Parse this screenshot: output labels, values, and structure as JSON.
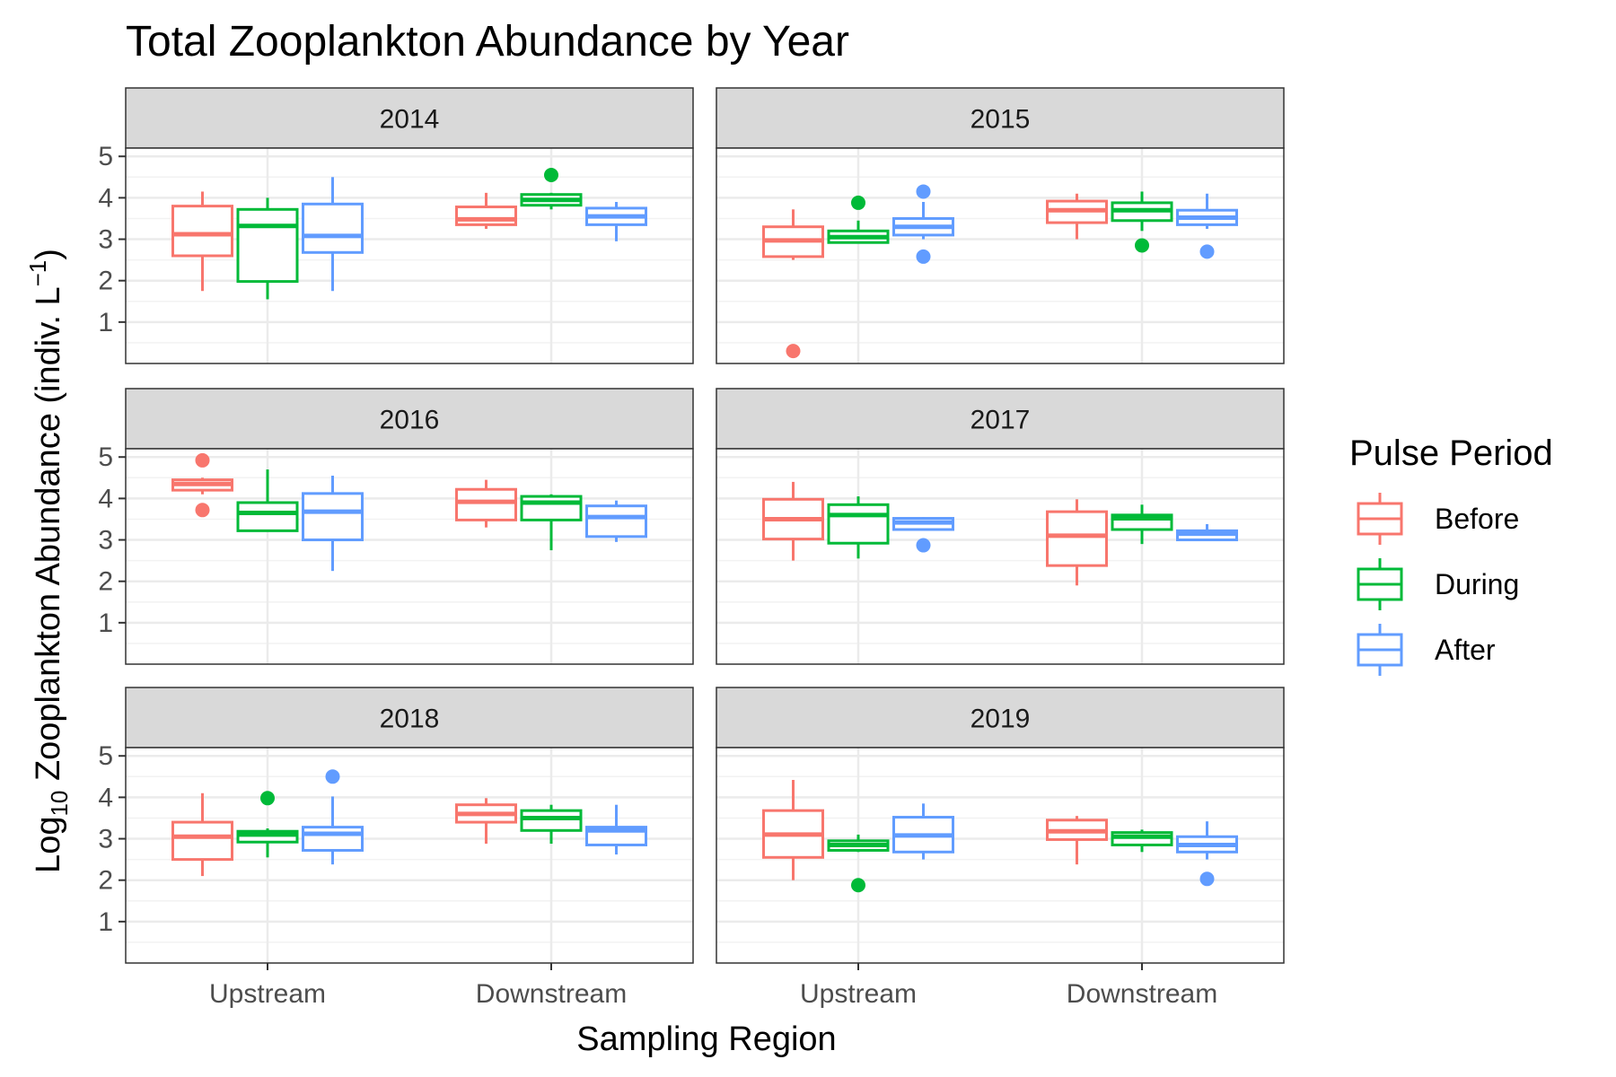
{
  "chart_data": {
    "type": "boxplot",
    "title": "Total Zooplankton Abundance by Year",
    "xlabel": "Sampling Region",
    "ylabel": {
      "prefix": "Log",
      "sub": "10",
      "main": " Zooplankton Abundance (indiv. L",
      "sup": "−1",
      "suffix": ")"
    },
    "categories": [
      "Upstream",
      "Downstream"
    ],
    "ylim": [
      0,
      5.2
    ],
    "yticks": [
      1,
      2,
      3,
      4,
      5
    ],
    "legend": {
      "title": "Pulse Period",
      "position": "right",
      "entries": [
        {
          "label": "Before",
          "color": "#F8766D"
        },
        {
          "label": "During",
          "color": "#00BA38"
        },
        {
          "label": "After",
          "color": "#619CFF"
        }
      ]
    },
    "facets": [
      {
        "label": "2014",
        "boxes": [
          {
            "region": "Upstream",
            "period": "Before",
            "min": 1.75,
            "q1": 2.6,
            "median": 3.12,
            "q3": 3.8,
            "max": 4.15,
            "outliers": []
          },
          {
            "region": "Upstream",
            "period": "During",
            "min": 1.55,
            "q1": 1.98,
            "median": 3.32,
            "q3": 3.72,
            "max": 4.0,
            "outliers": []
          },
          {
            "region": "Upstream",
            "period": "After",
            "min": 1.75,
            "q1": 2.68,
            "median": 3.08,
            "q3": 3.85,
            "max": 4.5,
            "outliers": []
          },
          {
            "region": "Downstream",
            "period": "Before",
            "min": 3.25,
            "q1": 3.35,
            "median": 3.48,
            "q3": 3.78,
            "max": 4.12,
            "outliers": []
          },
          {
            "region": "Downstream",
            "period": "During",
            "min": 3.72,
            "q1": 3.82,
            "median": 3.95,
            "q3": 4.08,
            "max": 4.12,
            "outliers": [
              4.55
            ]
          },
          {
            "region": "Downstream",
            "period": "After",
            "min": 2.95,
            "q1": 3.35,
            "median": 3.55,
            "q3": 3.75,
            "max": 3.9,
            "outliers": []
          }
        ]
      },
      {
        "label": "2015",
        "boxes": [
          {
            "region": "Upstream",
            "period": "Before",
            "min": 2.5,
            "q1": 2.58,
            "median": 2.97,
            "q3": 3.3,
            "max": 3.72,
            "outliers": [
              0.3
            ]
          },
          {
            "region": "Upstream",
            "period": "During",
            "min": 2.9,
            "q1": 2.92,
            "median": 3.05,
            "q3": 3.2,
            "max": 3.45,
            "outliers": [
              3.88
            ]
          },
          {
            "region": "Upstream",
            "period": "After",
            "min": 3.0,
            "q1": 3.1,
            "median": 3.3,
            "q3": 3.5,
            "max": 3.9,
            "outliers": [
              4.15,
              2.58
            ]
          },
          {
            "region": "Downstream",
            "period": "Before",
            "min": 3.0,
            "q1": 3.4,
            "median": 3.7,
            "q3": 3.92,
            "max": 4.1,
            "outliers": []
          },
          {
            "region": "Downstream",
            "period": "During",
            "min": 3.2,
            "q1": 3.45,
            "median": 3.7,
            "q3": 3.88,
            "max": 4.15,
            "outliers": [
              2.85
            ]
          },
          {
            "region": "Downstream",
            "period": "After",
            "min": 3.25,
            "q1": 3.35,
            "median": 3.52,
            "q3": 3.7,
            "max": 4.1,
            "outliers": [
              2.7
            ]
          }
        ]
      },
      {
        "label": "2016",
        "boxes": [
          {
            "region": "Upstream",
            "period": "Before",
            "min": 4.1,
            "q1": 4.2,
            "median": 4.35,
            "q3": 4.45,
            "max": 4.5,
            "outliers": [
              4.92,
              3.72
            ]
          },
          {
            "region": "Upstream",
            "period": "During",
            "min": 3.2,
            "q1": 3.22,
            "median": 3.65,
            "q3": 3.9,
            "max": 4.7,
            "outliers": []
          },
          {
            "region": "Upstream",
            "period": "After",
            "min": 2.25,
            "q1": 3.0,
            "median": 3.68,
            "q3": 4.12,
            "max": 4.55,
            "outliers": []
          },
          {
            "region": "Downstream",
            "period": "Before",
            "min": 3.3,
            "q1": 3.48,
            "median": 3.92,
            "q3": 4.22,
            "max": 4.45,
            "outliers": []
          },
          {
            "region": "Downstream",
            "period": "During",
            "min": 2.75,
            "q1": 3.48,
            "median": 3.9,
            "q3": 4.05,
            "max": 4.1,
            "outliers": []
          },
          {
            "region": "Downstream",
            "period": "After",
            "min": 2.95,
            "q1": 3.08,
            "median": 3.55,
            "q3": 3.82,
            "max": 3.95,
            "outliers": []
          }
        ]
      },
      {
        "label": "2017",
        "boxes": [
          {
            "region": "Upstream",
            "period": "Before",
            "min": 2.5,
            "q1": 3.02,
            "median": 3.5,
            "q3": 3.98,
            "max": 4.4,
            "outliers": []
          },
          {
            "region": "Upstream",
            "period": "During",
            "min": 2.55,
            "q1": 2.92,
            "median": 3.6,
            "q3": 3.85,
            "max": 4.05,
            "outliers": []
          },
          {
            "region": "Upstream",
            "period": "After",
            "min": 3.25,
            "q1": 3.25,
            "median": 3.42,
            "q3": 3.52,
            "max": 3.55,
            "outliers": [
              2.87
            ]
          },
          {
            "region": "Downstream",
            "period": "Before",
            "min": 1.9,
            "q1": 2.38,
            "median": 3.1,
            "q3": 3.68,
            "max": 3.98,
            "outliers": []
          },
          {
            "region": "Downstream",
            "period": "During",
            "min": 2.9,
            "q1": 3.25,
            "median": 3.52,
            "q3": 3.6,
            "max": 3.85,
            "outliers": []
          },
          {
            "region": "Downstream",
            "period": "After",
            "min": 3.0,
            "q1": 3.0,
            "median": 3.15,
            "q3": 3.22,
            "max": 3.38,
            "outliers": []
          }
        ]
      },
      {
        "label": "2018",
        "boxes": [
          {
            "region": "Upstream",
            "period": "Before",
            "min": 2.1,
            "q1": 2.5,
            "median": 3.05,
            "q3": 3.4,
            "max": 4.1,
            "outliers": []
          },
          {
            "region": "Upstream",
            "period": "During",
            "min": 2.55,
            "q1": 2.92,
            "median": 3.1,
            "q3": 3.18,
            "max": 3.25,
            "outliers": [
              3.98
            ]
          },
          {
            "region": "Upstream",
            "period": "After",
            "min": 2.38,
            "q1": 2.72,
            "median": 3.12,
            "q3": 3.28,
            "max": 4.02,
            "outliers": [
              4.5
            ]
          },
          {
            "region": "Downstream",
            "period": "Before",
            "min": 2.88,
            "q1": 3.4,
            "median": 3.6,
            "q3": 3.82,
            "max": 3.98,
            "outliers": []
          },
          {
            "region": "Downstream",
            "period": "During",
            "min": 2.88,
            "q1": 3.2,
            "median": 3.5,
            "q3": 3.68,
            "max": 3.82,
            "outliers": []
          },
          {
            "region": "Downstream",
            "period": "After",
            "min": 2.62,
            "q1": 2.85,
            "median": 3.2,
            "q3": 3.28,
            "max": 3.82,
            "outliers": []
          }
        ]
      },
      {
        "label": "2019",
        "boxes": [
          {
            "region": "Upstream",
            "period": "Before",
            "min": 2.0,
            "q1": 2.55,
            "median": 3.1,
            "q3": 3.68,
            "max": 4.42,
            "outliers": []
          },
          {
            "region": "Upstream",
            "period": "During",
            "min": 2.68,
            "q1": 2.72,
            "median": 2.85,
            "q3": 2.95,
            "max": 3.1,
            "outliers": [
              1.88
            ]
          },
          {
            "region": "Upstream",
            "period": "After",
            "min": 2.5,
            "q1": 2.68,
            "median": 3.08,
            "q3": 3.52,
            "max": 3.85,
            "outliers": []
          },
          {
            "region": "Downstream",
            "period": "Before",
            "min": 2.38,
            "q1": 2.98,
            "median": 3.18,
            "q3": 3.45,
            "max": 3.55,
            "outliers": []
          },
          {
            "region": "Downstream",
            "period": "During",
            "min": 2.68,
            "q1": 2.85,
            "median": 3.05,
            "q3": 3.15,
            "max": 3.22,
            "outliers": []
          },
          {
            "region": "Downstream",
            "period": "After",
            "min": 2.5,
            "q1": 2.68,
            "median": 2.85,
            "q3": 3.05,
            "max": 3.42,
            "outliers": [
              2.03
            ]
          }
        ]
      }
    ]
  }
}
